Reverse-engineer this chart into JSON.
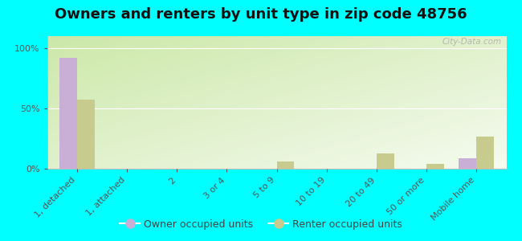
{
  "title": "Owners and renters by unit type in zip code 48756",
  "categories": [
    "1, detached",
    "1, attached",
    "2",
    "3 or 4",
    "5 to 9",
    "10 to 19",
    "20 to 49",
    "50 or more",
    "Mobile home"
  ],
  "owner_values": [
    92,
    0,
    0,
    0,
    0,
    0,
    0,
    0,
    9
  ],
  "renter_values": [
    57,
    0,
    0,
    0,
    6,
    0,
    13,
    4,
    27
  ],
  "owner_color": "#c9aed6",
  "renter_color": "#c8cb8e",
  "background_color": "#00ffff",
  "yticks": [
    0,
    50,
    100
  ],
  "ylim": [
    0,
    110
  ],
  "bar_width": 0.35,
  "title_fontsize": 13,
  "legend_fontsize": 9,
  "tick_fontsize": 8,
  "watermark": "City-Data.com"
}
